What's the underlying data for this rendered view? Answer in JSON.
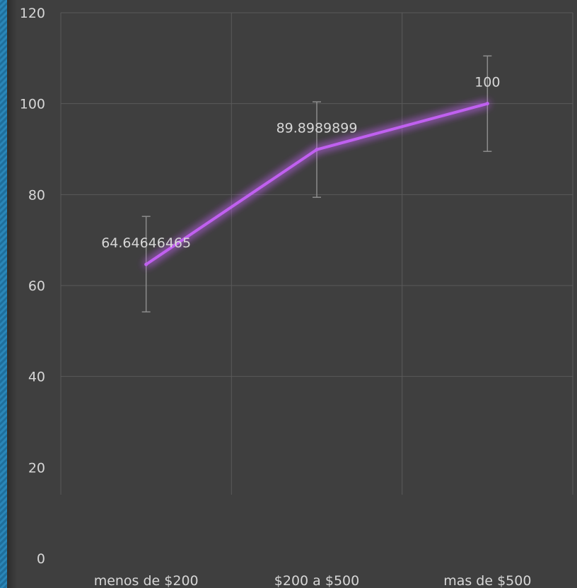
{
  "chart_data": {
    "type": "line",
    "categories": [
      "menos de $200",
      "$200 a $500",
      "mas de $500"
    ],
    "series": [
      {
        "values": [
          64.64646465,
          89.8989899,
          100
        ],
        "data_labels": [
          "64.64646465",
          "89.8989899",
          "100"
        ],
        "error_bars": [
          [
            54.2,
            75.2
          ],
          [
            79.4,
            100.4
          ],
          [
            89.5,
            110.5
          ]
        ],
        "color": "#c060f0"
      }
    ],
    "yticks": [
      "0",
      "20",
      "40",
      "60",
      "80",
      "100",
      "120"
    ],
    "ylim": [
      0,
      120
    ],
    "grid": true,
    "title": "",
    "xlabel": "",
    "ylabel": ""
  },
  "colors": {
    "background": "#3f3f3f",
    "grid": "#5a5a5a",
    "error_bar": "#8c8c8c",
    "accent_stripe": "#2a86b8"
  }
}
